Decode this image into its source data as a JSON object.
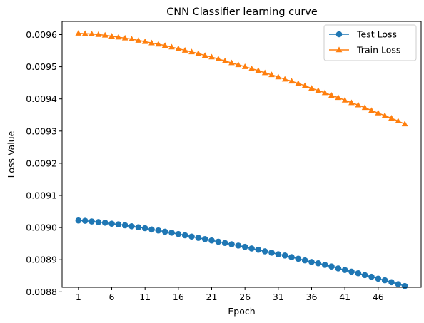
{
  "chart_data": {
    "type": "line",
    "title": "CNN Classifier learning curve",
    "xlabel": "Epoch",
    "ylabel": "Loss Value",
    "x": [
      1,
      2,
      3,
      4,
      5,
      6,
      7,
      8,
      9,
      10,
      11,
      12,
      13,
      14,
      15,
      16,
      17,
      18,
      19,
      20,
      21,
      22,
      23,
      24,
      25,
      26,
      27,
      28,
      29,
      30,
      31,
      32,
      33,
      34,
      35,
      36,
      37,
      38,
      39,
      40,
      41,
      42,
      43,
      44,
      45,
      46,
      47,
      48,
      49,
      50
    ],
    "xticks": [
      1,
      6,
      11,
      16,
      21,
      26,
      31,
      36,
      41,
      46
    ],
    "yticks": [
      0.0088,
      0.0089,
      0.009,
      0.0091,
      0.0092,
      0.0093,
      0.0094,
      0.0095,
      0.0096
    ],
    "ytick_labels": [
      "0.0088",
      "0.0089",
      "0.0090",
      "0.0091",
      "0.0092",
      "0.0093",
      "0.0094",
      "0.0095",
      "0.0096"
    ],
    "xlim": [
      -1.45,
      52.45
    ],
    "ylim": [
      0.008814,
      0.009641
    ],
    "grid": false,
    "legend_position": "top-right",
    "series": [
      {
        "name": "Test Loss",
        "color": "#1f77b4",
        "marker": "circle",
        "values": [
          0.009022,
          0.009021,
          0.009019,
          0.009017,
          0.009015,
          0.009012,
          0.00901,
          0.009007,
          0.009004,
          0.009001,
          0.008998,
          0.008994,
          0.008991,
          0.008987,
          0.008984,
          0.00898,
          0.008976,
          0.008972,
          0.008968,
          0.008964,
          0.00896,
          0.008956,
          0.008952,
          0.008948,
          0.008944,
          0.00894,
          0.008935,
          0.008931,
          0.008926,
          0.008922,
          0.008917,
          0.008913,
          0.008908,
          0.008903,
          0.008898,
          0.008893,
          0.008889,
          0.008884,
          0.008879,
          0.008873,
          0.008868,
          0.008863,
          0.008858,
          0.008852,
          0.008847,
          0.008841,
          0.008836,
          0.00883,
          0.008824,
          0.008818
        ]
      },
      {
        "name": "Train Loss",
        "color": "#ff7f0e",
        "marker": "triangle",
        "values": [
          0.009604,
          0.009603,
          0.009602,
          0.0096,
          0.009598,
          0.009595,
          0.009592,
          0.009589,
          0.009586,
          0.009582,
          0.009578,
          0.009574,
          0.00957,
          0.009566,
          0.009561,
          0.009556,
          0.009551,
          0.009546,
          0.009541,
          0.009535,
          0.00953,
          0.009524,
          0.009518,
          0.009512,
          0.009506,
          0.0095,
          0.009494,
          0.009488,
          0.009481,
          0.009475,
          0.009468,
          0.009461,
          0.009455,
          0.009448,
          0.009441,
          0.009433,
          0.009426,
          0.009419,
          0.009411,
          0.009404,
          0.009396,
          0.009388,
          0.009381,
          0.009373,
          0.009364,
          0.009356,
          0.009348,
          0.00934,
          0.009331,
          0.009322
        ]
      }
    ]
  }
}
